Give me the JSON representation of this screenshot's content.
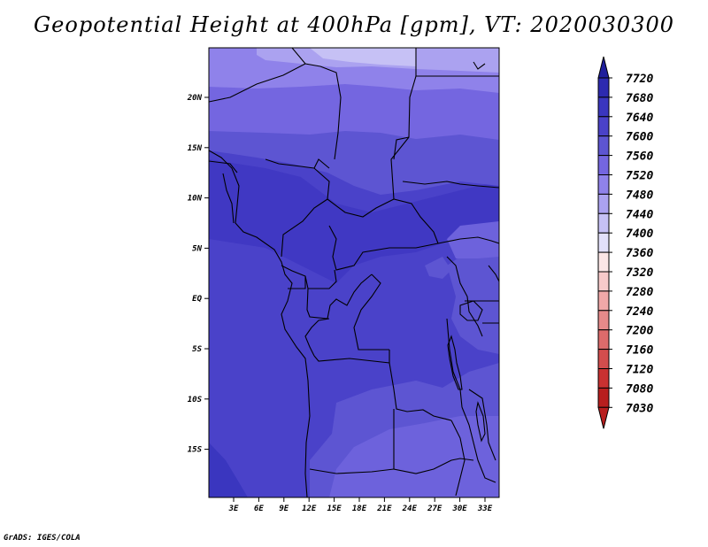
{
  "title": "Geopotential Height at 400hPa [gpm], VT: 2020030300",
  "footer": "GrADS: IGES/COLA",
  "map": {
    "lat_labels": [
      "20N",
      "15N",
      "10N",
      "5N",
      "EQ",
      "5S",
      "10S",
      "15S"
    ],
    "lon_labels": [
      "3E",
      "6E",
      "9E",
      "12E",
      "15E",
      "18E",
      "21E",
      "24E",
      "27E",
      "30E",
      "33E"
    ]
  },
  "colorbar": {
    "labels": [
      "7720",
      "7680",
      "7640",
      "7600",
      "7560",
      "7520",
      "7480",
      "7440",
      "7400",
      "7360",
      "7320",
      "7280",
      "7240",
      "7200",
      "7160",
      "7120",
      "7080",
      "7030"
    ],
    "colors": [
      "#1f1e9c",
      "#2d2ab0",
      "#3a36bf",
      "#4a42c9",
      "#5d55d2",
      "#7466e0",
      "#8f82ea",
      "#aba2f0",
      "#c6c1f5",
      "#e2e0fa",
      "#fbe6e6",
      "#f7caca",
      "#f0a8a8",
      "#e68a8a",
      "#dd6b6b",
      "#d34d4d",
      "#c93131",
      "#b81e1e"
    ]
  }
}
